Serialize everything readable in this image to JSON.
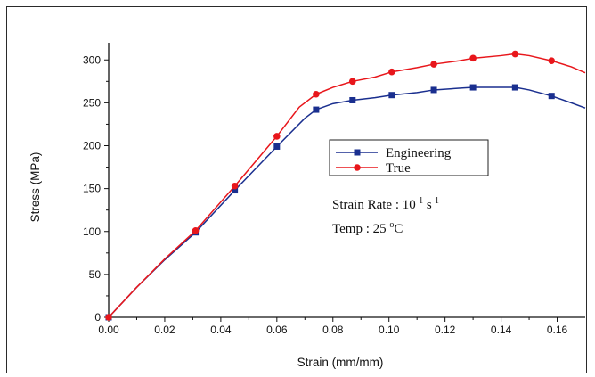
{
  "chart_data": {
    "type": "line",
    "xlabel": "Strain (mm/mm)",
    "ylabel": "Stress (MPa)",
    "xlim": [
      0,
      0.17
    ],
    "ylim": [
      0,
      320
    ],
    "xticks": [
      "0.00",
      "0.02",
      "0.04",
      "0.06",
      "0.08",
      "0.10",
      "0.12",
      "0.14",
      "0.16"
    ],
    "yticks": [
      "0",
      "50",
      "100",
      "150",
      "200",
      "250",
      "300"
    ],
    "grid": false,
    "legend_position": "center-right",
    "series": [
      {
        "name": "Engineering",
        "color": "#1a2f8f",
        "marker": "square",
        "line": [
          [
            0,
            0
          ],
          [
            0.01,
            35
          ],
          [
            0.02,
            67
          ],
          [
            0.031,
            99
          ],
          [
            0.045,
            148
          ],
          [
            0.06,
            199
          ],
          [
            0.07,
            232
          ],
          [
            0.074,
            242
          ],
          [
            0.08,
            249
          ],
          [
            0.087,
            253
          ],
          [
            0.095,
            256
          ],
          [
            0.101,
            259
          ],
          [
            0.11,
            262
          ],
          [
            0.116,
            265
          ],
          [
            0.125,
            267
          ],
          [
            0.13,
            268
          ],
          [
            0.14,
            268
          ],
          [
            0.145,
            268
          ],
          [
            0.15,
            265
          ],
          [
            0.158,
            258
          ],
          [
            0.165,
            250
          ],
          [
            0.17,
            244
          ]
        ],
        "markers": [
          [
            0,
            0
          ],
          [
            0.031,
            99
          ],
          [
            0.045,
            148
          ],
          [
            0.06,
            199
          ],
          [
            0.074,
            242
          ],
          [
            0.087,
            253
          ],
          [
            0.101,
            259
          ],
          [
            0.116,
            265
          ],
          [
            0.13,
            268
          ],
          [
            0.145,
            268
          ],
          [
            0.158,
            258
          ]
        ]
      },
      {
        "name": "True",
        "color": "#e8161b",
        "marker": "circle",
        "line": [
          [
            0,
            0
          ],
          [
            0.01,
            35
          ],
          [
            0.02,
            68
          ],
          [
            0.031,
            101
          ],
          [
            0.045,
            153
          ],
          [
            0.06,
            211
          ],
          [
            0.068,
            245
          ],
          [
            0.074,
            260
          ],
          [
            0.08,
            268
          ],
          [
            0.087,
            275
          ],
          [
            0.095,
            280
          ],
          [
            0.101,
            286
          ],
          [
            0.11,
            291
          ],
          [
            0.116,
            295
          ],
          [
            0.125,
            299
          ],
          [
            0.13,
            302
          ],
          [
            0.14,
            305
          ],
          [
            0.145,
            307
          ],
          [
            0.15,
            305
          ],
          [
            0.158,
            299
          ],
          [
            0.165,
            292
          ],
          [
            0.17,
            285
          ]
        ],
        "markers": [
          [
            0,
            0
          ],
          [
            0.031,
            101
          ],
          [
            0.045,
            153
          ],
          [
            0.06,
            211
          ],
          [
            0.074,
            260
          ],
          [
            0.087,
            275
          ],
          [
            0.101,
            286
          ],
          [
            0.116,
            295
          ],
          [
            0.13,
            302
          ],
          [
            0.145,
            307
          ],
          [
            0.158,
            299
          ]
        ]
      }
    ],
    "annotations": [
      {
        "key": "rate",
        "base": "Strain Rate : 10",
        "sup1": "-1",
        "mid": " s",
        "sup2": "-1"
      },
      {
        "key": "temp",
        "base": "Temp : 25 ",
        "sup1": "o",
        "mid": "C",
        "sup2": ""
      }
    ]
  }
}
